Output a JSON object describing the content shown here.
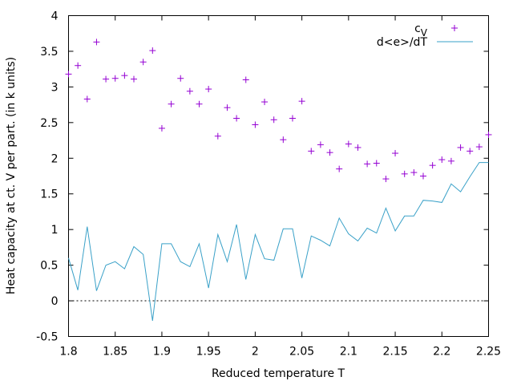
{
  "chart_data": {
    "type": "scatter",
    "xlabel": "Reduced temperature T",
    "ylabel": "Heat capacity at ct. V per part. (in k units)",
    "xlim": [
      1.8,
      2.25
    ],
    "ylim": [
      -0.5,
      4
    ],
    "xticks": [
      1.8,
      1.85,
      1.9,
      1.95,
      2,
      2.05,
      2.1,
      2.15,
      2.2,
      2.25
    ],
    "xtick_labels": [
      "1.8",
      "1.85",
      "1.9",
      "1.95",
      "2",
      "2.05",
      "2.1",
      "2.15",
      "2.2",
      "2.25"
    ],
    "yticks": [
      -0.5,
      0,
      0.5,
      1,
      1.5,
      2,
      2.5,
      3,
      3.5,
      4
    ],
    "ytick_labels": [
      "-0.5",
      "0",
      "0.5",
      "1",
      "1.5",
      "2",
      "2.5",
      "3",
      "3.5",
      "4"
    ],
    "grid": false,
    "legend_position": "top-right",
    "zero_line": {
      "y": 0,
      "style": "dotted",
      "color": "#000000"
    },
    "series": [
      {
        "name": "cV",
        "legend_main": "c",
        "legend_sub": "V",
        "style": "points",
        "marker": "plus",
        "color": "#9400d3",
        "x": [
          1.8,
          1.81,
          1.82,
          1.83,
          1.84,
          1.85,
          1.86,
          1.87,
          1.88,
          1.89,
          1.9,
          1.91,
          1.92,
          1.93,
          1.94,
          1.95,
          1.96,
          1.97,
          1.98,
          1.99,
          2.0,
          2.01,
          2.02,
          2.03,
          2.04,
          2.05,
          2.06,
          2.07,
          2.08,
          2.09,
          2.1,
          2.11,
          2.12,
          2.13,
          2.14,
          2.15,
          2.16,
          2.17,
          2.18,
          2.19,
          2.2,
          2.21,
          2.22,
          2.23,
          2.24,
          2.25
        ],
        "y": [
          3.18,
          3.3,
          2.83,
          3.63,
          3.11,
          3.12,
          3.16,
          3.11,
          3.35,
          3.51,
          2.42,
          2.76,
          3.12,
          2.94,
          2.76,
          2.97,
          2.31,
          2.71,
          2.56,
          3.1,
          2.47,
          2.79,
          2.54,
          2.26,
          2.56,
          2.8,
          2.1,
          2.19,
          2.08,
          1.85,
          2.2,
          2.15,
          1.92,
          1.93,
          1.71,
          2.07,
          1.78,
          1.8,
          1.75,
          1.9,
          1.98,
          1.96,
          2.15,
          2.1,
          2.16,
          2.33
        ]
      },
      {
        "name": "d<e>/dT",
        "style": "line",
        "color": "#3aa1c8",
        "x": [
          1.8,
          1.81,
          1.82,
          1.83,
          1.84,
          1.85,
          1.86,
          1.87,
          1.88,
          1.89,
          1.9,
          1.91,
          1.92,
          1.93,
          1.94,
          1.95,
          1.96,
          1.97,
          1.98,
          1.99,
          2.0,
          2.01,
          2.02,
          2.03,
          2.04,
          2.05,
          2.06,
          2.07,
          2.08,
          2.09,
          2.1,
          2.11,
          2.12,
          2.13,
          2.14,
          2.15,
          2.16,
          2.17,
          2.18,
          2.19,
          2.2,
          2.21,
          2.22,
          2.23,
          2.24,
          2.25
        ],
        "y": [
          0.6,
          0.15,
          1.04,
          0.14,
          0.5,
          0.55,
          0.45,
          0.76,
          0.65,
          -0.28,
          0.8,
          0.8,
          0.55,
          0.48,
          0.8,
          0.18,
          0.93,
          0.55,
          1.07,
          0.3,
          0.93,
          0.59,
          0.57,
          1.01,
          1.01,
          0.32,
          0.91,
          0.85,
          0.77,
          1.16,
          0.94,
          0.84,
          1.02,
          0.95,
          1.3,
          0.98,
          1.19,
          1.19,
          1.41,
          1.4,
          1.38,
          1.64,
          1.53,
          1.74,
          1.94,
          1.94
        ]
      }
    ]
  }
}
